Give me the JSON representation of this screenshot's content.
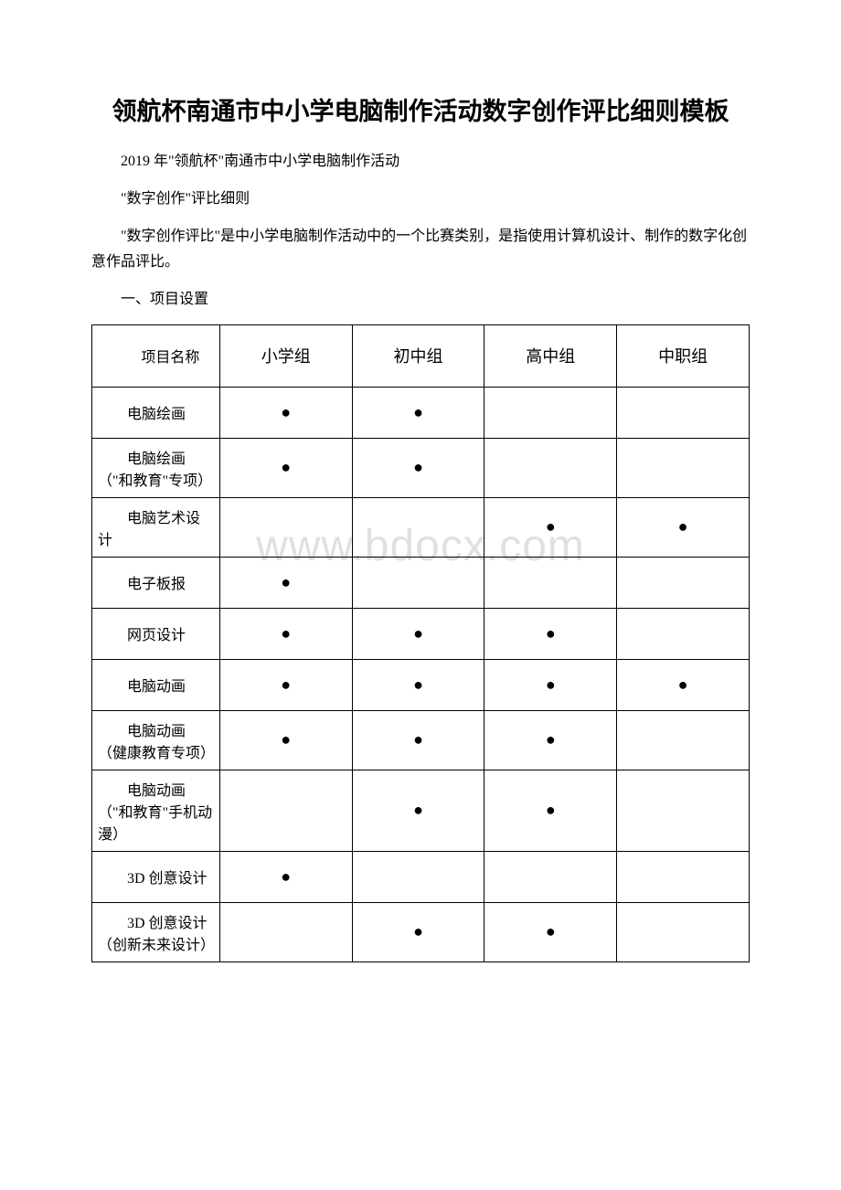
{
  "title": "领航杯南通市中小学电脑制作活动数字创作评比细则模板",
  "intro_lines": [
    "2019 年\"领航杯\"南通市中小学电脑制作活动",
    "\"数字创作\"评比细则"
  ],
  "description": "\"数字创作评比\"是中小学电脑制作活动中的一个比赛类别，是指使用计算机设计、制作的数字化创意作品评比。",
  "section_heading": "一、项目设置",
  "watermark": "www.bdocx.com",
  "table": {
    "header_col1": "项目名称",
    "columns": [
      "小学组",
      "初中组",
      "高中组",
      "中职组"
    ],
    "rows": [
      {
        "label": "电脑绘画",
        "cells": [
          true,
          true,
          false,
          false
        ]
      },
      {
        "label": "电脑绘画（\"和教育\"专项）",
        "cells": [
          true,
          true,
          false,
          false
        ]
      },
      {
        "label": "电脑艺术设计",
        "cells": [
          false,
          false,
          true,
          true
        ]
      },
      {
        "label": "电子板报",
        "cells": [
          true,
          false,
          false,
          false
        ]
      },
      {
        "label": "网页设计",
        "cells": [
          true,
          true,
          true,
          false
        ]
      },
      {
        "label": "电脑动画",
        "cells": [
          true,
          true,
          true,
          true
        ]
      },
      {
        "label": "电脑动画（健康教育专项）",
        "cells": [
          true,
          true,
          true,
          false
        ]
      },
      {
        "label": "电脑动画（\"和教育\"手机动漫）",
        "cells": [
          false,
          true,
          true,
          false
        ]
      },
      {
        "label": "3D 创意设计",
        "cells": [
          true,
          false,
          false,
          false
        ]
      },
      {
        "label": "3D 创意设计（创新未来设计）",
        "cells": [
          false,
          true,
          true,
          false
        ]
      }
    ],
    "dot_glyph": "●"
  }
}
